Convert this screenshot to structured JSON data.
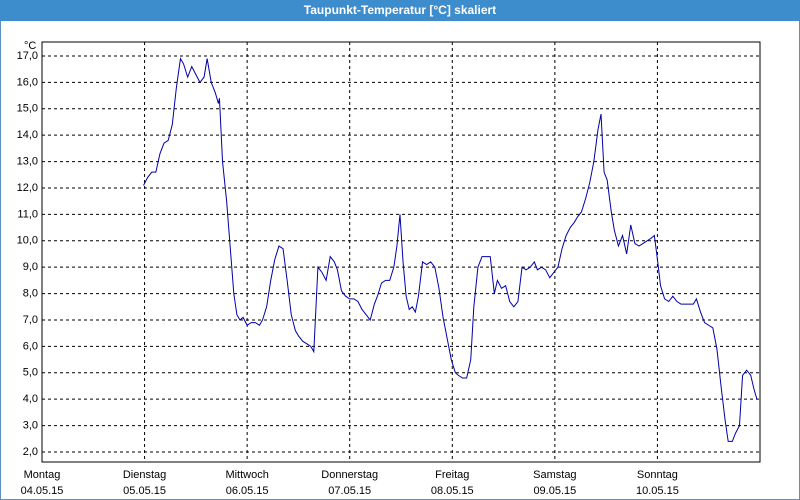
{
  "chart_data": {
    "type": "line",
    "title": "Taupunkt-Temperatur [°C] skaliert",
    "unit": "°C",
    "color": "#0000a8",
    "grid": true,
    "xlim": [
      0,
      7
    ],
    "xticks": [
      {
        "value": 0,
        "label": "Montag",
        "date": "04.05.15"
      },
      {
        "value": 1,
        "label": "Dienstag",
        "date": "05.05.15"
      },
      {
        "value": 2,
        "label": "Mittwoch",
        "date": "06.05.15"
      },
      {
        "value": 3,
        "label": "Donnerstag",
        "date": "07.05.15"
      },
      {
        "value": 4,
        "label": "Freitag",
        "date": "08.05.15"
      },
      {
        "value": 5,
        "label": "Samstag",
        "date": "09.05.15"
      },
      {
        "value": 6,
        "label": "Sonntag",
        "date": "10.05.15"
      }
    ],
    "ylim": [
      1.62,
      17.53
    ],
    "yticks": [
      {
        "value": 2,
        "label": "2,0"
      },
      {
        "value": 3,
        "label": "3,0"
      },
      {
        "value": 4,
        "label": "4,0"
      },
      {
        "value": 5,
        "label": "5,0"
      },
      {
        "value": 6,
        "label": "6,0"
      },
      {
        "value": 7,
        "label": "7,0"
      },
      {
        "value": 8,
        "label": "8,0"
      },
      {
        "value": 9,
        "label": "9,0"
      },
      {
        "value": 10,
        "label": "10,0"
      },
      {
        "value": 11,
        "label": "11,0"
      },
      {
        "value": 12,
        "label": "12,0"
      },
      {
        "value": 13,
        "label": "13,0"
      },
      {
        "value": 14,
        "label": "14,0"
      },
      {
        "value": 15,
        "label": "15,0"
      },
      {
        "value": 16,
        "label": "16,0"
      },
      {
        "value": 17,
        "label": "17,0"
      }
    ],
    "x": [
      0.99,
      1.03,
      1.07,
      1.11,
      1.15,
      1.19,
      1.23,
      1.27,
      1.31,
      1.35,
      1.38,
      1.42,
      1.46,
      1.5,
      1.54,
      1.58,
      1.61,
      1.65,
      1.69,
      1.72,
      1.73,
      1.76,
      1.8,
      1.84,
      1.87,
      1.9,
      1.93,
      1.96,
      2.0,
      2.04,
      2.08,
      2.12,
      2.15,
      2.19,
      2.23,
      2.27,
      2.31,
      2.35,
      2.39,
      2.43,
      2.47,
      2.5,
      2.54,
      2.58,
      2.62,
      2.65,
      2.69,
      2.73,
      2.77,
      2.81,
      2.85,
      2.88,
      2.92,
      2.96,
      3.0,
      3.04,
      3.08,
      3.12,
      3.16,
      3.2,
      3.24,
      3.27,
      3.31,
      3.35,
      3.39,
      3.43,
      3.46,
      3.49,
      3.52,
      3.55,
      3.58,
      3.61,
      3.64,
      3.67,
      3.71,
      3.75,
      3.79,
      3.83,
      3.87,
      3.91,
      3.95,
      3.99,
      4.03,
      4.06,
      4.1,
      4.14,
      4.18,
      4.21,
      4.25,
      4.29,
      4.33,
      4.37,
      4.41,
      4.44,
      4.48,
      4.52,
      4.56,
      4.6,
      4.64,
      4.68,
      4.72,
      4.76,
      4.8,
      4.83,
      4.87,
      4.91,
      4.95,
      4.99,
      5.03,
      5.07,
      5.11,
      5.15,
      5.19,
      5.22,
      5.26,
      5.3,
      5.34,
      5.38,
      5.42,
      5.45,
      5.48,
      5.51,
      5.55,
      5.58,
      5.62,
      5.66,
      5.7,
      5.74,
      5.78,
      5.82,
      5.86,
      5.9,
      5.94,
      5.97,
      6.0,
      6.03,
      6.07,
      6.11,
      6.15,
      6.19,
      6.23,
      6.27,
      6.31,
      6.35,
      6.38,
      6.42,
      6.46,
      6.5,
      6.54,
      6.58,
      6.62,
      6.66,
      6.69,
      6.73,
      6.76,
      6.8,
      6.83,
      6.87,
      6.91,
      6.94,
      6.97
    ],
    "values": [
      12.1,
      12.4,
      12.6,
      12.6,
      13.3,
      13.7,
      13.8,
      14.4,
      15.8,
      16.9,
      16.7,
      16.2,
      16.6,
      16.3,
      16.0,
      16.2,
      16.9,
      16.0,
      15.6,
      15.2,
      15.4,
      13.0,
      11.5,
      9.5,
      8.0,
      7.2,
      7.0,
      7.1,
      6.8,
      6.9,
      6.9,
      6.8,
      7.0,
      7.5,
      8.5,
      9.3,
      9.8,
      9.7,
      8.5,
      7.2,
      6.6,
      6.4,
      6.2,
      6.1,
      6.0,
      5.8,
      9.0,
      8.8,
      8.5,
      9.4,
      9.2,
      8.9,
      8.1,
      7.9,
      7.8,
      7.8,
      7.7,
      7.4,
      7.2,
      7.0,
      7.6,
      7.9,
      8.4,
      8.5,
      8.5,
      9.0,
      9.8,
      11.0,
      9.2,
      7.9,
      7.4,
      7.5,
      7.3,
      7.9,
      9.2,
      9.1,
      9.2,
      9.0,
      8.2,
      7.1,
      6.3,
      5.5,
      5.0,
      4.9,
      4.8,
      4.8,
      5.5,
      7.5,
      9.0,
      9.4,
      9.4,
      9.4,
      8.0,
      8.5,
      8.2,
      8.3,
      7.7,
      7.5,
      7.7,
      9.0,
      8.9,
      9.0,
      9.2,
      8.9,
      9.0,
      8.9,
      8.6,
      8.8,
      9.0,
      9.7,
      10.2,
      10.5,
      10.7,
      10.9,
      11.1,
      11.6,
      12.2,
      13.0,
      14.2,
      14.8,
      12.6,
      12.3,
      11.1,
      10.4,
      9.8,
      10.2,
      9.5,
      10.6,
      9.9,
      9.8,
      9.9,
      10.0,
      10.1,
      10.2,
      9.3,
      8.3,
      7.8,
      7.7,
      7.9,
      7.7,
      7.6,
      7.6,
      7.6,
      7.6,
      7.8,
      7.3,
      6.9,
      6.8,
      6.7,
      5.9,
      4.5,
      3.2,
      2.4,
      2.4,
      2.7,
      3.0,
      4.9,
      5.1,
      4.9,
      4.4,
      4.0
    ]
  }
}
